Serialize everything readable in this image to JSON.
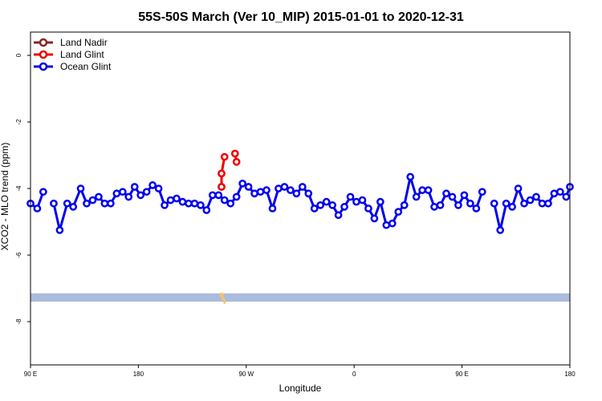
{
  "chart_data": {
    "type": "line",
    "title": "55S-50S March (Ver 10_MIP)   2015-01-01 to 2020-12-31",
    "xlabel": "Longitude",
    "ylabel": "XCO2 - MLO trend (ppm)",
    "xlim": [
      -180,
      180
    ],
    "ylim": [
      -9.3,
      0.7
    ],
    "x_ticks": [
      {
        "value": -180,
        "label": "90 E"
      },
      {
        "value": -108,
        "label": "180"
      },
      {
        "value": -36,
        "label": "90 W"
      },
      {
        "value": 36,
        "label": "0"
      },
      {
        "value": 108,
        "label": "90 E"
      },
      {
        "value": 180,
        "label": "180"
      }
    ],
    "y_ticks": [
      0,
      -2,
      -4,
      -6,
      -8
    ],
    "legend_position": "top-left",
    "series": [
      {
        "name": "Land Nadir",
        "color": "#8b2323",
        "points": [
          [
            -52.5,
            -3.55
          ],
          [
            -52.5,
            -3.95
          ]
        ]
      },
      {
        "name": "Land Glint",
        "color": "#ee0000",
        "points": [
          [
            -52.5,
            -3.95
          ],
          [
            -52.5,
            -3.55
          ],
          [
            -50.5,
            -3.05
          ],
          [
            -43.5,
            -2.95
          ],
          [
            -42.5,
            -3.2
          ]
        ]
      },
      {
        "name": "Ocean Glint",
        "color": "#0000ee",
        "points": [
          [
            -180,
            -4.45
          ],
          [
            -175.5,
            -4.6
          ],
          [
            -171.5,
            -4.1
          ],
          [
            -164.5,
            -4.45
          ],
          [
            -160.5,
            -5.25
          ],
          [
            -155.5,
            -4.45
          ],
          [
            -151.5,
            -4.55
          ],
          [
            -146.5,
            -4.0
          ],
          [
            -142.5,
            -4.45
          ],
          [
            -138.5,
            -4.35
          ],
          [
            -134.5,
            -4.25
          ],
          [
            -130.5,
            -4.45
          ],
          [
            -126.5,
            -4.45
          ],
          [
            -122.5,
            -4.15
          ],
          [
            -118.5,
            -4.1
          ],
          [
            -114.5,
            -4.25
          ],
          [
            -110.5,
            -3.95
          ],
          [
            -106.5,
            -4.2
          ],
          [
            -102.5,
            -4.1
          ],
          [
            -98.5,
            -3.9
          ],
          [
            -94.5,
            -4.0
          ],
          [
            -90.5,
            -4.5
          ],
          [
            -86.5,
            -4.35
          ],
          [
            -82.5,
            -4.3
          ],
          [
            -78.5,
            -4.4
          ],
          [
            -74.5,
            -4.45
          ],
          [
            -70.5,
            -4.45
          ],
          [
            -66.5,
            -4.5
          ],
          [
            -62.5,
            -4.65
          ],
          [
            -58.5,
            -4.2
          ],
          [
            -54.5,
            -4.2
          ],
          [
            -50.5,
            -4.35
          ],
          [
            -46.5,
            -4.45
          ],
          [
            -42.5,
            -4.25
          ],
          [
            -38.5,
            -3.85
          ],
          [
            -34.5,
            -3.95
          ],
          [
            -30.5,
            -4.15
          ],
          [
            -26.5,
            -4.1
          ],
          [
            -22.5,
            -4.05
          ],
          [
            -18.5,
            -4.6
          ],
          [
            -14.5,
            -4.0
          ],
          [
            -10.5,
            -3.95
          ],
          [
            -6.5,
            -4.05
          ],
          [
            -2.5,
            -4.15
          ],
          [
            1.5,
            -3.95
          ],
          [
            5.5,
            -4.15
          ],
          [
            9.5,
            -4.6
          ],
          [
            13.5,
            -4.5
          ],
          [
            17.5,
            -4.4
          ],
          [
            21.5,
            -4.5
          ],
          [
            25.5,
            -4.8
          ],
          [
            29.5,
            -4.55
          ],
          [
            33.5,
            -4.25
          ],
          [
            37.5,
            -4.4
          ],
          [
            41.5,
            -4.35
          ],
          [
            45.5,
            -4.6
          ],
          [
            49.5,
            -4.9
          ],
          [
            53.5,
            -4.4
          ],
          [
            57.5,
            -5.1
          ],
          [
            61.5,
            -5.05
          ],
          [
            65.5,
            -4.7
          ],
          [
            69.5,
            -4.5
          ],
          [
            73.5,
            -3.65
          ],
          [
            77.5,
            -4.25
          ],
          [
            81.5,
            -4.05
          ],
          [
            85.5,
            -4.05
          ],
          [
            89.5,
            -4.55
          ],
          [
            93.5,
            -4.5
          ],
          [
            97.5,
            -4.15
          ],
          [
            101.5,
            -4.25
          ],
          [
            105.5,
            -4.5
          ],
          [
            109.5,
            -4.2
          ],
          [
            113.5,
            -4.45
          ],
          [
            117.5,
            -4.6
          ],
          [
            121.5,
            -4.1
          ],
          [
            129.5,
            -4.45
          ],
          [
            133.5,
            -5.25
          ],
          [
            137.5,
            -4.45
          ],
          [
            141.5,
            -4.55
          ],
          [
            145.5,
            -4.0
          ],
          [
            149.5,
            -4.45
          ],
          [
            153.5,
            -4.35
          ],
          [
            157.5,
            -4.25
          ],
          [
            161.5,
            -4.45
          ],
          [
            165.5,
            -4.45
          ],
          [
            169.5,
            -4.15
          ],
          [
            173.5,
            -4.1
          ],
          [
            177.5,
            -4.25
          ],
          [
            180,
            -3.95
          ]
        ]
      }
    ],
    "map_strip": {
      "y_top": -7.15,
      "y_bottom": -7.4,
      "color": "#aabbdd",
      "land_color": "#f5c36a"
    }
  }
}
